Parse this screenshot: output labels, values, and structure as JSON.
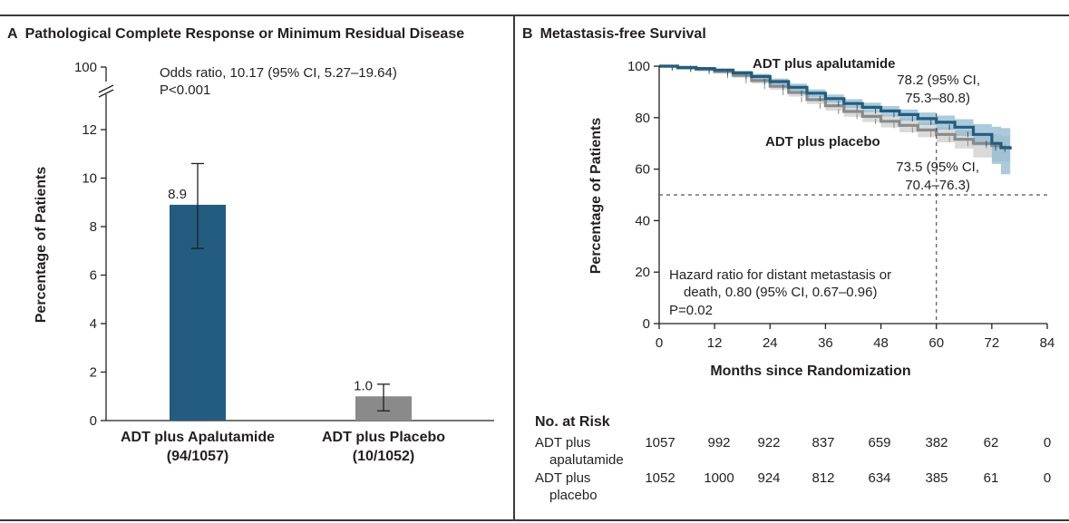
{
  "colors": {
    "apalutamide": "#235c7f",
    "apalutamide_band": "#8fb9d0",
    "placebo": "#8a8a8a",
    "placebo_band": "#cdcdcd",
    "placebo_label": "#7f7f7f",
    "axis": "#231f20"
  },
  "panel_a": {
    "letter": "A",
    "title": "Pathological Complete Response or Minimum Residual Disease",
    "annotation_line1": "Odds ratio, 10.17 (95% CI, 5.27–19.64)",
    "annotation_line2": "P<0.001"
  },
  "panel_b": {
    "letter": "B",
    "title": "Metastasis-free Survival",
    "label_apalutamide": "ADT plus apalutamide",
    "label_placebo": "ADT plus placebo",
    "estimate_apalutamide_line1": "78.2 (95% CI,",
    "estimate_apalutamide_line2": "75.3–80.8)",
    "estimate_placebo_line1": "73.5 (95% CI,",
    "estimate_placebo_line2": "70.4–76.3)",
    "hazard_line1": "Hazard ratio for distant metastasis or",
    "hazard_line2": "death, 0.80 (95% CI, 0.67–0.96)",
    "hazard_line3": "P=0.02"
  },
  "risk_table": {
    "header": "No. at Risk",
    "rows": [
      {
        "label_line1": "ADT plus",
        "label_line2": "apalutamide",
        "values": [
          "1057",
          "992",
          "922",
          "837",
          "659",
          "382",
          "62",
          "0"
        ]
      },
      {
        "label_line1": "ADT plus",
        "label_line2": "placebo",
        "values": [
          "1052",
          "1000",
          "924",
          "812",
          "634",
          "385",
          "61",
          "0"
        ]
      }
    ]
  },
  "chart_data": [
    {
      "type": "bar",
      "ylabel": "Percentage of Patients",
      "xlabel": "",
      "ylim": [
        0,
        13
      ],
      "axis_break": true,
      "yticks": [
        "0",
        "2",
        "4",
        "6",
        "8",
        "10",
        "12"
      ],
      "ytick_top": "100",
      "categories": [
        {
          "line1": "ADT plus Apalutamide",
          "line2": "(94/1057)"
        },
        {
          "line1": "ADT plus Placebo",
          "line2": "(10/1052)"
        }
      ],
      "values": [
        8.9,
        1.0
      ],
      "value_labels": [
        "8.9",
        "1.0"
      ],
      "error_low": [
        7.1,
        0.4
      ],
      "error_high": [
        10.6,
        1.5
      ]
    },
    {
      "type": "line",
      "xlabel": "Months since Randomization",
      "ylabel": "Percentage of Patients",
      "xlim": [
        0,
        84
      ],
      "ylim": [
        0,
        100
      ],
      "xticks": [
        "0",
        "12",
        "24",
        "36",
        "48",
        "60",
        "72",
        "84"
      ],
      "yticks": [
        "0",
        "20",
        "40",
        "60",
        "80",
        "100"
      ],
      "reference_lines": {
        "y": 50,
        "x": 60
      },
      "series": [
        {
          "name": "ADT plus apalutamide",
          "x": [
            0,
            4,
            8,
            12,
            16,
            20,
            24,
            28,
            32,
            36,
            40,
            44,
            48,
            52,
            56,
            60,
            64,
            68,
            72,
            74,
            76
          ],
          "y": [
            100,
            99.5,
            99.1,
            98.5,
            97.4,
            96.0,
            94.0,
            91.8,
            89.5,
            87.4,
            85.5,
            84.0,
            82.6,
            81.2,
            79.6,
            78.2,
            76.3,
            73.5,
            70.0,
            68.3,
            67.7
          ],
          "ci_low": [
            100,
            99.3,
            98.7,
            97.9,
            96.6,
            95.0,
            92.8,
            90.4,
            88.0,
            85.8,
            83.8,
            82.2,
            80.5,
            78.8,
            77.1,
            75.3,
            72.9,
            69.2,
            62.0,
            58.0,
            58.0
          ],
          "ci_high": [
            100,
            99.8,
            99.5,
            99.1,
            98.2,
            97.0,
            95.2,
            93.2,
            91.0,
            89.0,
            87.2,
            85.8,
            84.5,
            83.2,
            82.0,
            80.8,
            79.4,
            77.5,
            76.5,
            76.0,
            75.0
          ]
        },
        {
          "name": "ADT plus placebo",
          "x": [
            0,
            4,
            8,
            12,
            16,
            20,
            24,
            28,
            32,
            36,
            40,
            44,
            48,
            52,
            56,
            60,
            64,
            68,
            72,
            74,
            76
          ],
          "y": [
            100,
            99.3,
            98.7,
            97.9,
            96.4,
            94.4,
            92.2,
            89.8,
            87.0,
            84.6,
            82.4,
            80.5,
            78.6,
            77.0,
            75.2,
            73.5,
            71.6,
            70.0,
            69.1,
            68.5,
            68.5
          ],
          "ci_low": [
            100,
            99.0,
            98.2,
            97.2,
            95.5,
            93.2,
            90.8,
            88.2,
            85.3,
            82.7,
            80.4,
            78.3,
            76.2,
            74.3,
            72.4,
            70.4,
            68.0,
            64.5,
            63.0,
            63.0,
            63.0
          ],
          "ci_high": [
            100,
            99.6,
            99.2,
            98.6,
            97.3,
            95.6,
            93.6,
            91.4,
            88.7,
            86.5,
            84.4,
            82.7,
            81.0,
            79.7,
            78.0,
            76.3,
            75.0,
            74.0,
            73.5,
            73.0,
            73.0
          ]
        }
      ]
    }
  ]
}
